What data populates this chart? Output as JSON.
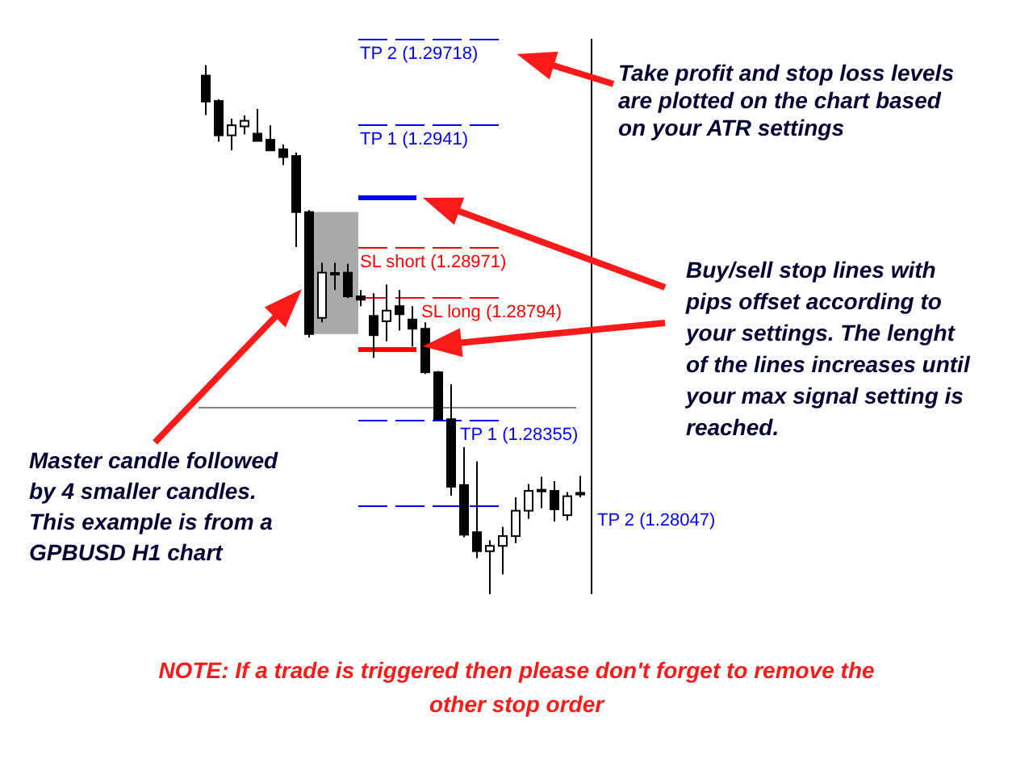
{
  "chart_data": {
    "type": "candlestick",
    "tick_labels": false,
    "ylim": [
      1.27728,
      1.29718
    ],
    "categories": [
      null,
      null,
      null,
      null,
      null,
      null,
      null,
      null,
      null,
      null,
      null,
      null,
      null,
      null,
      null,
      null,
      null,
      null,
      null,
      null,
      null,
      null,
      null,
      null,
      null,
      null,
      null,
      null,
      null,
      null
    ],
    "ohlc": [
      [
        1.29586,
        1.29623,
        1.29445,
        1.29493
      ],
      [
        1.29495,
        1.29501,
        1.29349,
        1.29372
      ],
      [
        1.29372,
        1.29432,
        1.29318,
        1.29408
      ],
      [
        1.29404,
        1.29443,
        1.29375,
        1.29424
      ],
      [
        1.29378,
        1.29466,
        1.29351,
        1.29352
      ],
      [
        1.29356,
        1.29408,
        1.29316,
        1.29318
      ],
      [
        1.29322,
        1.29339,
        1.29265,
        1.29294
      ],
      [
        1.29298,
        1.2931,
        1.28972,
        1.29097
      ],
      [
        1.29097,
        1.29104,
        1.28648,
        1.2866
      ],
      [
        1.28718,
        1.28915,
        1.28702,
        1.2888
      ],
      [
        1.28879,
        1.28915,
        1.28818,
        1.28873
      ],
      [
        1.2888,
        1.28912,
        1.28789,
        1.28795
      ],
      [
        1.28795,
        1.28818,
        1.2876,
        1.28783
      ],
      [
        1.28725,
        1.28806,
        1.28575,
        1.28656
      ],
      [
        1.28706,
        1.28837,
        1.28634,
        1.28744
      ],
      [
        1.2876,
        1.28818,
        1.28673,
        1.28731
      ],
      [
        1.28712,
        1.2876,
        1.28615,
        1.28679
      ],
      [
        1.28679,
        1.28702,
        1.28517,
        1.28523
      ],
      [
        1.28523,
        1.28528,
        1.28351,
        1.28355
      ],
      [
        1.28355,
        1.2848,
        1.28081,
        1.28113
      ],
      [
        1.28119,
        1.28255,
        1.27932,
        1.27941
      ],
      [
        1.2795,
        1.28204,
        1.27857,
        1.27882
      ],
      [
        1.27882,
        1.27921,
        1.27728,
        1.27901
      ],
      [
        1.27901,
        1.27969,
        1.27799,
        1.27936
      ],
      [
        1.27936,
        1.28075,
        1.27911,
        1.28027
      ],
      [
        1.28027,
        1.28123,
        1.27998,
        1.28098
      ],
      [
        1.28098,
        1.28148,
        1.28036,
        1.28102
      ],
      [
        1.28098,
        1.28133,
        1.27988,
        1.28032
      ],
      [
        1.28011,
        1.28094,
        1.27992,
        1.28079
      ],
      [
        1.28088,
        1.28152,
        1.28075,
        1.28091
      ]
    ],
    "bands": [
      {
        "axis": "y",
        "from": 1.2866,
        "to": 1.29097,
        "color": "#a9a9a9"
      }
    ],
    "ref_lines": [
      {
        "axis": "y",
        "value": 1.29718,
        "label": "TP 2 (1.29718)",
        "color": "#0000ff",
        "line_style": "dashed"
      },
      {
        "axis": "y",
        "value": 1.2941,
        "label": "TP 1 (1.2941)",
        "color": "#0000ff",
        "line_style": "dashed"
      },
      {
        "axis": "y",
        "value": 1.29152,
        "color": "#0000ff",
        "line_style": "solid"
      },
      {
        "axis": "y",
        "value": 1.28971,
        "label": "SL short (1.28971)",
        "color": "#ff0000",
        "line_style": "dashed"
      },
      {
        "axis": "y",
        "value": 1.28794,
        "label": "SL long (1.28794)",
        "color": "#ff0000",
        "line_style": "dashed"
      },
      {
        "axis": "y",
        "value": 1.28608,
        "color": "#ff0000",
        "line_style": "solid"
      },
      {
        "axis": "y",
        "value": 1.28397,
        "color": "#808080"
      },
      {
        "axis": "y",
        "value": 1.28355,
        "label": "TP 1 (1.28355)",
        "color": "#0000ff",
        "line_style": "dashed"
      },
      {
        "axis": "y",
        "value": 1.28047,
        "label": "TP 2 (1.28047)",
        "color": "#0000ff",
        "line_style": "dashed"
      }
    ],
    "annotations": [
      "Take profit and stop loss levels\nare plotted on the chart based\non your ATR settings",
      "Buy/sell stop lines with\npips offset according to\nyour settings. The lenght\nof the lines increases until\nyour max signal setting is\nreached.",
      "Master candle followed\nby 4 smaller candles.\nThis example is from a\nGPBUSD H1 chart",
      "NOTE: If a trade is triggered then please don't forget to remove the\nother stop order"
    ]
  }
}
